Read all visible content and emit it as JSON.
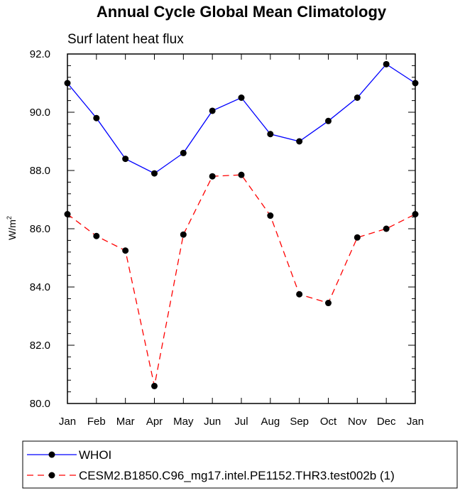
{
  "chart_data": {
    "type": "line",
    "title": "Annual Cycle Global Mean Climatology",
    "subtitle": "Surf latent heat flux",
    "ylabel_base": "W/m",
    "ylabel_sup": "2",
    "xlabel": "",
    "categories": [
      "Jan",
      "Feb",
      "Mar",
      "Apr",
      "May",
      "Jun",
      "Jul",
      "Aug",
      "Sep",
      "Oct",
      "Nov",
      "Dec",
      "Jan"
    ],
    "ylim": [
      80.0,
      92.0
    ],
    "yticks": [
      "80.0",
      "82.0",
      "84.0",
      "86.0",
      "88.0",
      "90.0",
      "92.0"
    ],
    "ytick_values": [
      80,
      82,
      84,
      86,
      88,
      90,
      92
    ],
    "grid": false,
    "legend_position": "bottom",
    "series": [
      {
        "name": "WHOI",
        "color": "#0000ff",
        "dash": "solid",
        "values": [
          91.0,
          89.8,
          88.4,
          87.9,
          88.6,
          90.05,
          90.5,
          89.25,
          89.0,
          89.7,
          90.5,
          91.65,
          91.0
        ]
      },
      {
        "name": "CESM2.B1850.C96_mg17.intel.PE1152.THR3.test002b (1)",
        "color": "#ff0000",
        "dash": "dashed",
        "values": [
          86.5,
          85.75,
          85.25,
          80.6,
          85.8,
          87.8,
          87.85,
          86.45,
          83.75,
          83.45,
          85.7,
          86.0,
          86.5
        ]
      }
    ]
  }
}
